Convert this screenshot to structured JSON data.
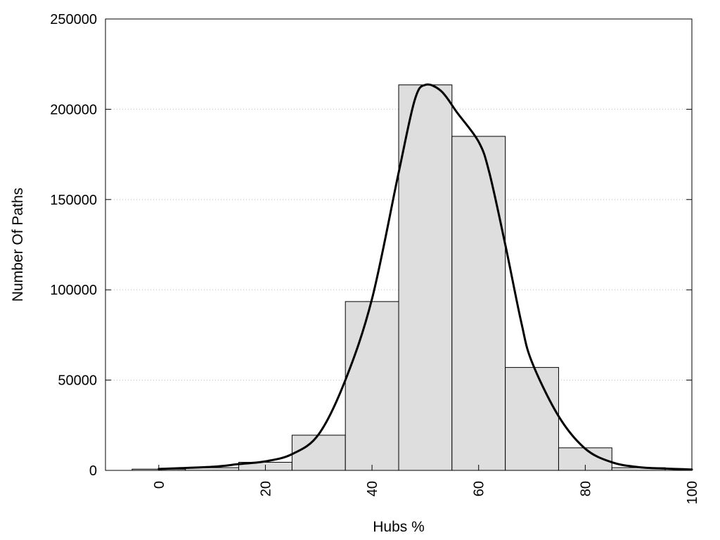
{
  "chart_data": {
    "type": "bar",
    "title": "",
    "xlabel": "Hubs %",
    "ylabel": "Number Of Paths",
    "xlim": [
      -10,
      100
    ],
    "ylim": [
      0,
      250000
    ],
    "x_ticks": [
      "0",
      "20",
      "40",
      "60",
      "80",
      "100"
    ],
    "y_ticks": [
      "0",
      "50000",
      "100000",
      "150000",
      "200000",
      "250000"
    ],
    "grid": true,
    "bin_width": 10,
    "bins": [
      0,
      10,
      20,
      30,
      40,
      50,
      60,
      70,
      80,
      90
    ],
    "values": [
      700,
      1500,
      4500,
      19500,
      93500,
      213500,
      185000,
      57000,
      12500,
      1500
    ],
    "curve": {
      "type": "line",
      "x": [
        0,
        10,
        15,
        20,
        25,
        30,
        35,
        40,
        45,
        48,
        50,
        53,
        56,
        60,
        62,
        65,
        68,
        70,
        75,
        80,
        85,
        90,
        95,
        100
      ],
      "y": [
        800,
        2000,
        3500,
        5000,
        9000,
        20000,
        50000,
        95000,
        165000,
        205000,
        213500,
        210000,
        198000,
        182000,
        165000,
        125000,
        82000,
        60000,
        30000,
        12000,
        4500,
        1800,
        1000,
        500
      ]
    }
  }
}
